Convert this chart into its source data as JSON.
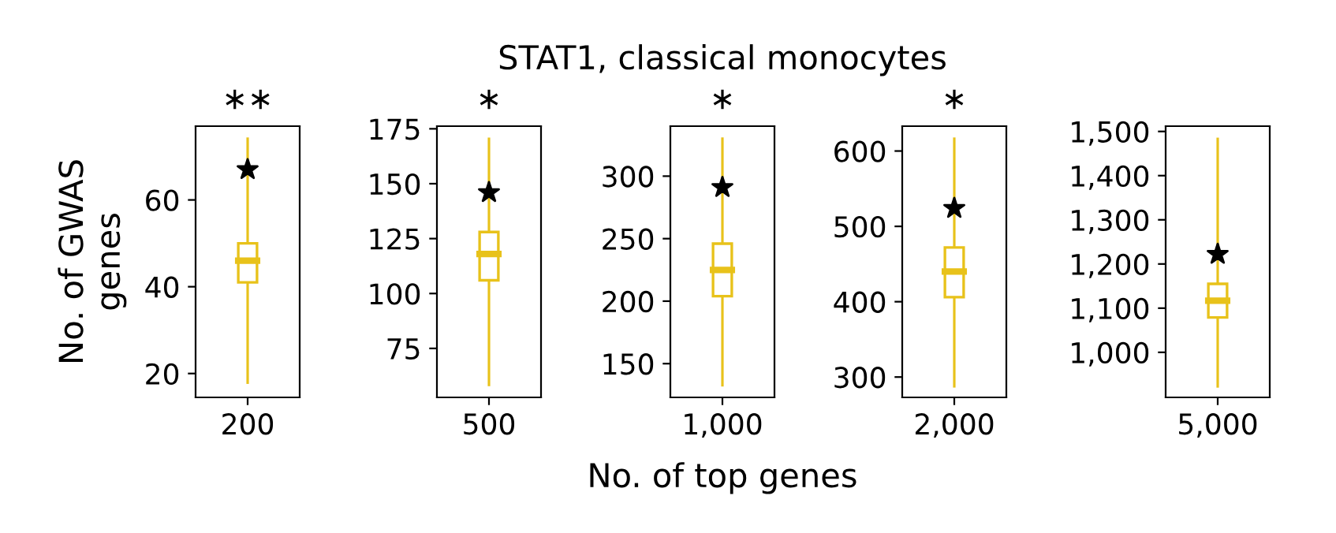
{
  "chart_data": [
    {
      "type": "box",
      "categories": [
        "200"
      ],
      "ylabel": "No. of GWAS\ngenes",
      "color": "#e8c21a",
      "ylim": [
        14.5,
        77
      ],
      "yticks": [
        20,
        40,
        60
      ],
      "annotations": [
        "∗∗"
      ],
      "grid": false,
      "legend": false,
      "boxes": [
        {
          "low": 17.6,
          "q1": 41,
          "median": 46,
          "q3": 50,
          "high": 74.4
        }
      ],
      "series": [
        {
          "type": "scatter",
          "color": "#000000",
          "marker": "star",
          "x": [
            "200"
          ],
          "values": [
            67
          ]
        }
      ]
    },
    {
      "type": "box",
      "categories": [
        "500"
      ],
      "color": "#e8c21a",
      "ylim": [
        52.7,
        176.2
      ],
      "yticks": [
        75,
        100,
        125,
        150,
        175
      ],
      "annotations": [
        "∗"
      ],
      "grid": false,
      "legend": false,
      "boxes": [
        {
          "low": 57.8,
          "q1": 106,
          "median": 118,
          "q3": 128,
          "high": 171
        }
      ],
      "series": [
        {
          "type": "scatter",
          "color": "#000000",
          "marker": "star",
          "x": [
            "500"
          ],
          "values": [
            146
          ]
        }
      ]
    },
    {
      "type": "box",
      "title": "STAT1, classical monocytes",
      "xlabel": "No. of top genes",
      "categories": [
        "1,000"
      ],
      "color": "#e8c21a",
      "ylim": [
        123,
        340
      ],
      "yticks": [
        150,
        200,
        250,
        300
      ],
      "annotations": [
        "∗"
      ],
      "grid": false,
      "legend": false,
      "boxes": [
        {
          "low": 131.7,
          "q1": 204,
          "median": 225,
          "q3": 246,
          "high": 331
        }
      ],
      "series": [
        {
          "type": "scatter",
          "color": "#000000",
          "marker": "star",
          "x": [
            "1,000"
          ],
          "values": [
            291
          ]
        }
      ]
    },
    {
      "type": "box",
      "categories": [
        "2,000"
      ],
      "color": "#e8c21a",
      "ylim": [
        273,
        633
      ],
      "yticks": [
        300,
        400,
        500,
        600
      ],
      "annotations": [
        "∗"
      ],
      "grid": false,
      "legend": false,
      "boxes": [
        {
          "low": 286,
          "q1": 406,
          "median": 440,
          "q3": 472,
          "high": 618
        }
      ],
      "series": [
        {
          "type": "scatter",
          "color": "#000000",
          "marker": "star",
          "x": [
            "2,000"
          ],
          "values": [
            524
          ]
        }
      ]
    },
    {
      "type": "box",
      "categories": [
        "5,000"
      ],
      "color": "#e8c21a",
      "ylim": [
        898,
        1512
      ],
      "yticks": [
        {
          "value": 1000,
          "label": "1,000"
        },
        {
          "value": 1100,
          "label": "1,100"
        },
        {
          "value": 1200,
          "label": "1,200"
        },
        {
          "value": 1300,
          "label": "1,300"
        },
        {
          "value": 1400,
          "label": "1,400"
        },
        {
          "value": 1500,
          "label": "1,500"
        }
      ],
      "grid": false,
      "legend": false,
      "boxes": [
        {
          "low": 920,
          "q1": 1079,
          "median": 1117,
          "q3": 1155,
          "high": 1486
        }
      ],
      "series": [
        {
          "type": "scatter",
          "color": "#000000",
          "marker": "star",
          "x": [
            "5,000"
          ],
          "values": [
            1222
          ]
        }
      ]
    }
  ]
}
